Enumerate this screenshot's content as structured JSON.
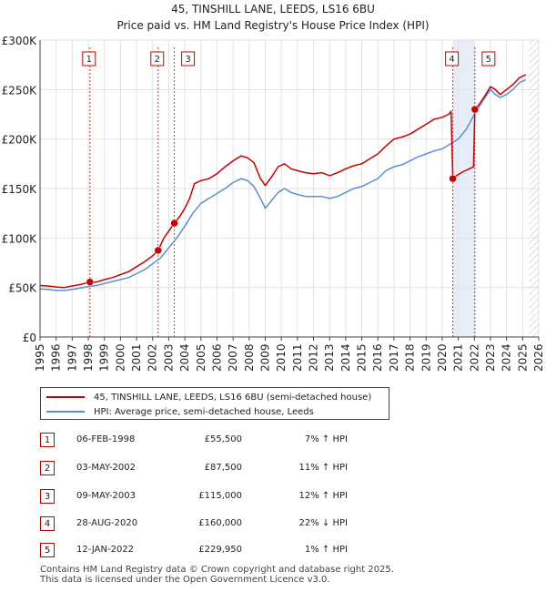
{
  "colors": {
    "price_paid": "#cc0000",
    "hpi": "#5b8ed6",
    "sale_box_border": "#cc0000",
    "highlight_band": "#dde6f3",
    "grid": "#e2e2e2",
    "future_hatch": "#cccccc"
  },
  "chart_data": {
    "type": "line",
    "title": "45, TINSHILL LANE, LEEDS, LS16 6BU",
    "subtitle": "Price paid vs. HM Land Registry's House Price Index (HPI)",
    "xlabel": "",
    "ylabel": "",
    "xlim": [
      1995.0,
      2026.0
    ],
    "ylim": [
      0,
      300000
    ],
    "x_ticks": [
      1995,
      1996,
      1997,
      1998,
      1999,
      2000,
      2001,
      2002,
      2003,
      2004,
      2005,
      2006,
      2007,
      2008,
      2009,
      2010,
      2011,
      2012,
      2013,
      2014,
      2015,
      2016,
      2017,
      2018,
      2019,
      2020,
      2021,
      2022,
      2023,
      2024,
      2025,
      2026
    ],
    "y_ticks": [
      {
        "value": 0,
        "label": "£0"
      },
      {
        "value": 50000,
        "label": "£50K"
      },
      {
        "value": 100000,
        "label": "£100K"
      },
      {
        "value": 150000,
        "label": "£150K"
      },
      {
        "value": 200000,
        "label": "£200K"
      },
      {
        "value": 250000,
        "label": "£250K"
      },
      {
        "value": 300000,
        "label": "£300K"
      }
    ],
    "grid": true,
    "highlight_ranges": [
      [
        2020.66,
        2022.03
      ]
    ],
    "future_hatch_from": 2025.4,
    "series": [
      {
        "name": "45, TINSHILL LANE, LEEDS, LS16 6BU (semi-detached house)",
        "color": "#cc0000",
        "points": [
          [
            1995.0,
            52000
          ],
          [
            1995.5,
            51500
          ],
          [
            1996.0,
            50500
          ],
          [
            1996.5,
            50000
          ],
          [
            1997.0,
            51500
          ],
          [
            1997.5,
            53000
          ],
          [
            1998.1,
            55500
          ],
          [
            1998.5,
            55500
          ],
          [
            1999.0,
            58000
          ],
          [
            1999.5,
            60000
          ],
          [
            2000.0,
            63000
          ],
          [
            2000.5,
            66000
          ],
          [
            2001.0,
            71000
          ],
          [
            2001.5,
            76000
          ],
          [
            2002.0,
            82000
          ],
          [
            2002.34,
            87500
          ],
          [
            2002.7,
            100000
          ],
          [
            2003.35,
            115000
          ],
          [
            2003.7,
            122000
          ],
          [
            2004.0,
            130000
          ],
          [
            2004.3,
            140000
          ],
          [
            2004.6,
            155000
          ],
          [
            2005.0,
            158000
          ],
          [
            2005.5,
            160000
          ],
          [
            2006.0,
            165000
          ],
          [
            2006.5,
            172000
          ],
          [
            2007.0,
            178000
          ],
          [
            2007.5,
            183000
          ],
          [
            2007.9,
            181000
          ],
          [
            2008.3,
            176000
          ],
          [
            2008.7,
            160000
          ],
          [
            2009.0,
            153000
          ],
          [
            2009.4,
            162000
          ],
          [
            2009.8,
            172000
          ],
          [
            2010.2,
            175000
          ],
          [
            2010.6,
            170000
          ],
          [
            2011.0,
            168000
          ],
          [
            2011.5,
            166000
          ],
          [
            2012.0,
            165000
          ],
          [
            2012.5,
            166000
          ],
          [
            2013.0,
            163000
          ],
          [
            2013.5,
            166000
          ],
          [
            2014.0,
            170000
          ],
          [
            2014.5,
            173000
          ],
          [
            2015.0,
            175000
          ],
          [
            2015.5,
            180000
          ],
          [
            2016.0,
            185000
          ],
          [
            2016.5,
            193000
          ],
          [
            2017.0,
            200000
          ],
          [
            2017.5,
            202000
          ],
          [
            2018.0,
            205000
          ],
          [
            2018.5,
            210000
          ],
          [
            2019.0,
            215000
          ],
          [
            2019.5,
            220000
          ],
          [
            2020.0,
            222000
          ],
          [
            2020.4,
            225000
          ],
          [
            2020.55,
            228000
          ],
          [
            2020.66,
            160000
          ],
          [
            2020.9,
            163000
          ],
          [
            2021.3,
            167000
          ],
          [
            2021.7,
            170000
          ],
          [
            2021.95,
            172000
          ],
          [
            2022.03,
            229950
          ],
          [
            2022.3,
            235000
          ],
          [
            2022.7,
            245000
          ],
          [
            2023.0,
            253000
          ],
          [
            2023.3,
            250000
          ],
          [
            2023.6,
            245000
          ],
          [
            2024.0,
            250000
          ],
          [
            2024.4,
            255000
          ],
          [
            2024.8,
            262000
          ],
          [
            2025.2,
            265000
          ]
        ]
      },
      {
        "name": "HPI: Average price, semi-detached house, Leeds",
        "color": "#5b8ed6",
        "points": [
          [
            1995.0,
            48500
          ],
          [
            1995.5,
            48000
          ],
          [
            1996.0,
            47000
          ],
          [
            1996.5,
            47000
          ],
          [
            1997.0,
            48000
          ],
          [
            1997.5,
            49500
          ],
          [
            1998.0,
            51000
          ],
          [
            1998.5,
            52000
          ],
          [
            1999.0,
            54000
          ],
          [
            1999.5,
            56000
          ],
          [
            2000.0,
            58000
          ],
          [
            2000.5,
            60000
          ],
          [
            2001.0,
            64000
          ],
          [
            2001.5,
            68000
          ],
          [
            2002.0,
            74000
          ],
          [
            2002.5,
            80000
          ],
          [
            2003.0,
            90000
          ],
          [
            2003.5,
            100000
          ],
          [
            2004.0,
            112000
          ],
          [
            2004.5,
            125000
          ],
          [
            2005.0,
            135000
          ],
          [
            2005.5,
            140000
          ],
          [
            2006.0,
            145000
          ],
          [
            2006.5,
            150000
          ],
          [
            2007.0,
            156000
          ],
          [
            2007.5,
            160000
          ],
          [
            2007.9,
            158000
          ],
          [
            2008.3,
            152000
          ],
          [
            2008.7,
            140000
          ],
          [
            2009.0,
            130000
          ],
          [
            2009.4,
            138000
          ],
          [
            2009.8,
            146000
          ],
          [
            2010.2,
            150000
          ],
          [
            2010.6,
            146000
          ],
          [
            2011.0,
            144000
          ],
          [
            2011.5,
            142000
          ],
          [
            2012.0,
            142000
          ],
          [
            2012.5,
            142000
          ],
          [
            2013.0,
            140000
          ],
          [
            2013.5,
            142000
          ],
          [
            2014.0,
            146000
          ],
          [
            2014.5,
            150000
          ],
          [
            2015.0,
            152000
          ],
          [
            2015.5,
            156000
          ],
          [
            2016.0,
            160000
          ],
          [
            2016.5,
            168000
          ],
          [
            2017.0,
            172000
          ],
          [
            2017.5,
            174000
          ],
          [
            2018.0,
            178000
          ],
          [
            2018.5,
            182000
          ],
          [
            2019.0,
            185000
          ],
          [
            2019.5,
            188000
          ],
          [
            2020.0,
            190000
          ],
          [
            2020.5,
            195000
          ],
          [
            2021.0,
            200000
          ],
          [
            2021.5,
            210000
          ],
          [
            2022.0,
            225000
          ],
          [
            2022.5,
            238000
          ],
          [
            2023.0,
            250000
          ],
          [
            2023.3,
            245000
          ],
          [
            2023.6,
            242000
          ],
          [
            2024.0,
            245000
          ],
          [
            2024.4,
            250000
          ],
          [
            2024.8,
            257000
          ],
          [
            2025.2,
            260000
          ]
        ]
      }
    ],
    "sales": [
      {
        "id": "1",
        "x": 1998.1,
        "price": 55500
      },
      {
        "id": "2",
        "x": 2002.34,
        "price": 87500
      },
      {
        "id": "3",
        "x": 2003.35,
        "price": 115000
      },
      {
        "id": "4",
        "x": 2020.66,
        "price": 160000
      },
      {
        "id": "5",
        "x": 2022.03,
        "price": 229950
      }
    ]
  },
  "legend": {
    "price_paid_label": "45, TINSHILL LANE, LEEDS, LS16 6BU (semi-detached house)",
    "hpi_label": "HPI: Average price, semi-detached house, Leeds"
  },
  "transactions": [
    {
      "num": "1",
      "date": "06-FEB-1998",
      "price": "£55,500",
      "hpi": "7% ↑ HPI"
    },
    {
      "num": "2",
      "date": "03-MAY-2002",
      "price": "£87,500",
      "hpi": "11% ↑ HPI"
    },
    {
      "num": "3",
      "date": "09-MAY-2003",
      "price": "£115,000",
      "hpi": "12% ↑ HPI"
    },
    {
      "num": "4",
      "date": "28-AUG-2020",
      "price": "£160,000",
      "hpi": "22% ↓ HPI"
    },
    {
      "num": "5",
      "date": "12-JAN-2022",
      "price": "£229,950",
      "hpi": "1% ↑ HPI"
    }
  ],
  "footer": {
    "line1": "Contains HM Land Registry data © Crown copyright and database right 2025.",
    "line2": "This data is licensed under the Open Government Licence v3.0."
  }
}
